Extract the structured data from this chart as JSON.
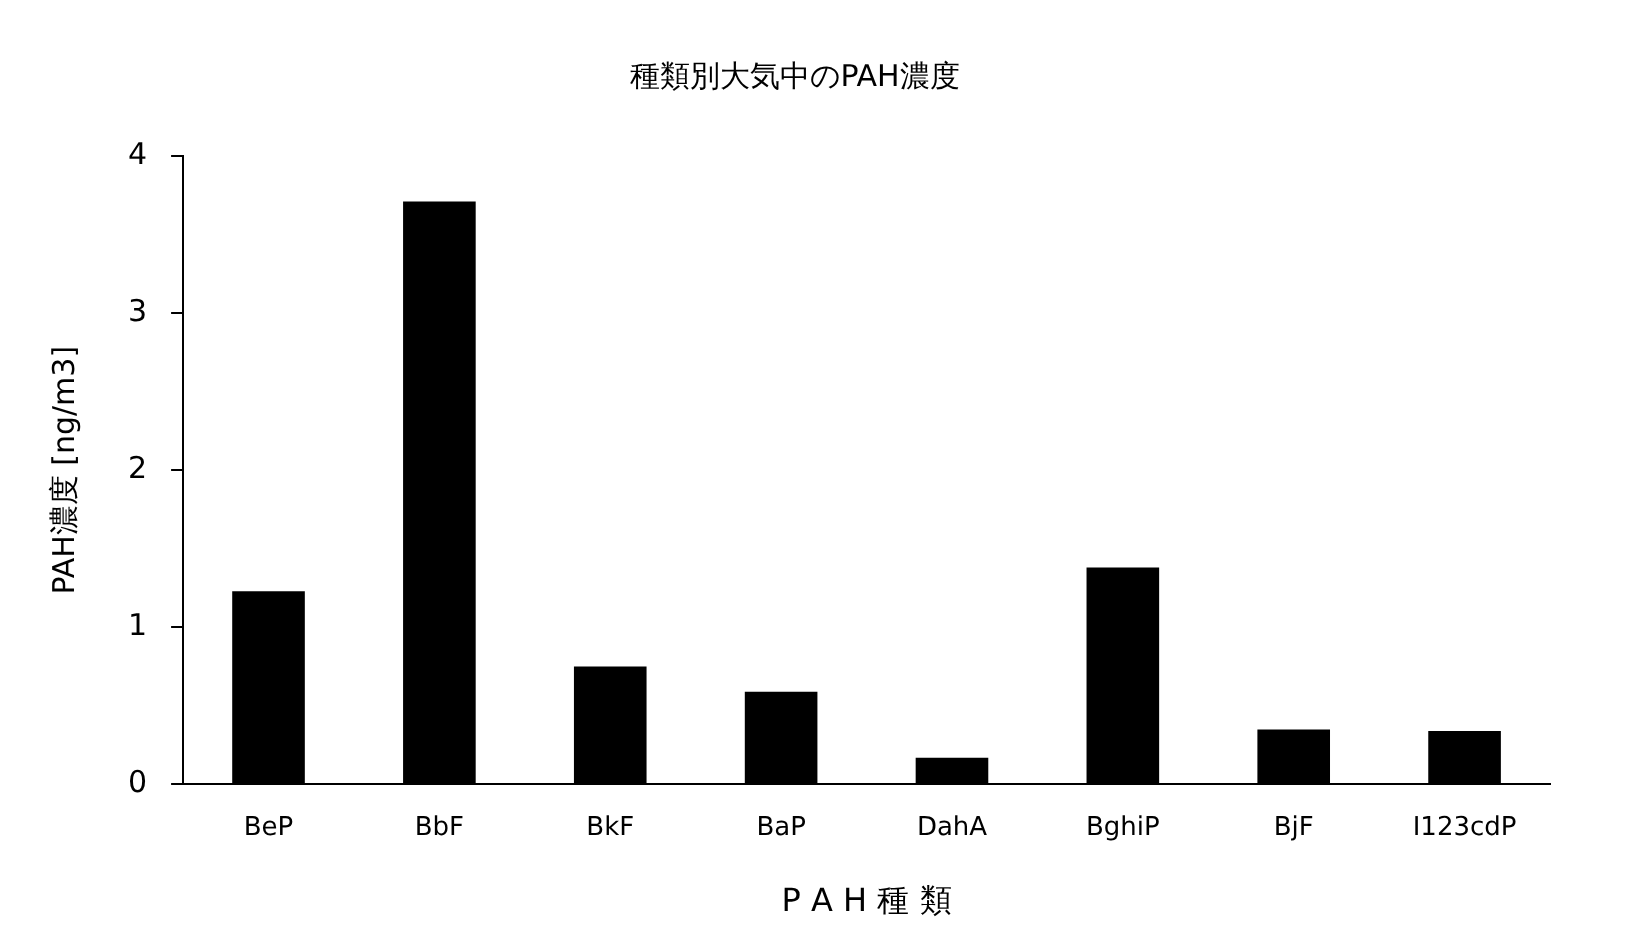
{
  "chart_data": {
    "type": "bar",
    "title": "種類別大気中のPAH濃度",
    "xlabel": "P A H 種 類",
    "ylabel": "PAH濃度 [ng/m3]",
    "categories": [
      "BeP",
      "BbF",
      "BkF",
      "BaP",
      "DahA",
      "BghiP",
      "BjF",
      "I123cdP"
    ],
    "values": [
      1.23,
      3.71,
      0.75,
      0.59,
      0.17,
      1.38,
      0.35,
      0.34
    ],
    "color": "#000000",
    "ylim": [
      0,
      4
    ],
    "yticks": [
      0,
      1,
      2,
      3,
      4
    ],
    "grid": false,
    "legend": false
  }
}
